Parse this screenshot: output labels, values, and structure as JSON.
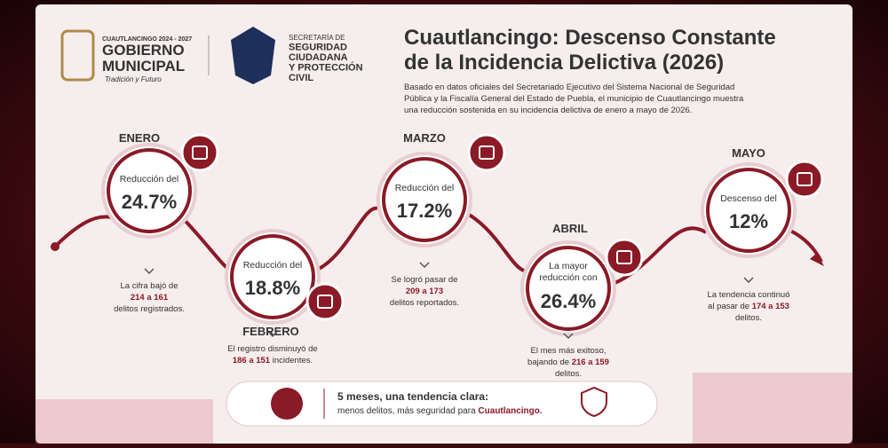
{
  "header": {
    "city_line": "CUAUTLANCINGO 2024 - 2027",
    "gov_line1": "GOBIERNO",
    "gov_line2": "MUNICIPAL",
    "slogan": "Tradición y Futuro",
    "sec_lines": [
      "SECRETARÍA DE",
      "SEGURIDAD",
      "CIUDADANA",
      "Y PROTECCIÓN",
      "CIVIL"
    ]
  },
  "title": [
    "Cuautlancingo: Descenso Constante",
    "de la Incidencia Delictiva (2026)"
  ],
  "intro": [
    "Basado en datos oficiales del Secretariado Ejecutivo del Sistema Nacional de Seguridad",
    "Pública y la Fiscalía General del Estado de Puebla, el municipio de Cuautlancingo muestra",
    "una reducción sostenida en su incidencia delictiva de enero a mayo de 2026."
  ],
  "months": [
    {
      "name": "ENERO",
      "lead": [
        "Reducción del"
      ],
      "figure": "24.7%",
      "detail": [
        [
          {
            "text": "La cifra bajó de",
            "bold": false
          }
        ],
        [
          {
            "text": "214 a 161",
            "bold": true
          }
        ],
        [
          {
            "text": "delitos registrados.",
            "bold": false
          }
        ]
      ]
    },
    {
      "name": "FEBRERO",
      "lead": [
        "Reducción del"
      ],
      "figure": "18.8%",
      "detail": [
        [
          {
            "text": "El registro disminuyó de",
            "bold": false
          }
        ],
        [
          {
            "text": "186 a 151",
            "bold": true
          },
          {
            "text": " incidentes.",
            "bold": false
          }
        ]
      ]
    },
    {
      "name": "MARZO",
      "lead": [
        "Reducción del"
      ],
      "figure": "17.2%",
      "detail": [
        [
          {
            "text": "Se logró pasar de",
            "bold": false
          }
        ],
        [
          {
            "text": "209 a 173",
            "bold": true
          }
        ],
        [
          {
            "text": "delitos reportados.",
            "bold": false
          }
        ]
      ]
    },
    {
      "name": "ABRIL",
      "lead": [
        "La mayor",
        "reducción con"
      ],
      "figure": "26.4%",
      "detail": [
        [
          {
            "text": "El mes más exitoso,",
            "bold": false
          }
        ],
        [
          {
            "text": "bajando de ",
            "bold": false
          },
          {
            "text": "216 a 159",
            "bold": true
          }
        ],
        [
          {
            "text": "delitos.",
            "bold": false
          }
        ]
      ]
    },
    {
      "name": "MAYO",
      "lead": [
        "Descenso del"
      ],
      "figure": "12%",
      "detail": [
        [
          {
            "text": "La tendencia continuó",
            "bold": false
          }
        ],
        [
          {
            "text": "al pasar de ",
            "bold": false
          },
          {
            "text": "174 a 153",
            "bold": true
          }
        ],
        [
          {
            "text": "delitos.",
            "bold": false
          }
        ]
      ]
    }
  ],
  "footer": {
    "line1": "5 meses, una tendencia clara:",
    "line2": [
      {
        "text": "menos delitos, más seguridad para ",
        "bold": false
      },
      {
        "text": "Cuautlancingo.",
        "bold": true
      }
    ]
  }
}
